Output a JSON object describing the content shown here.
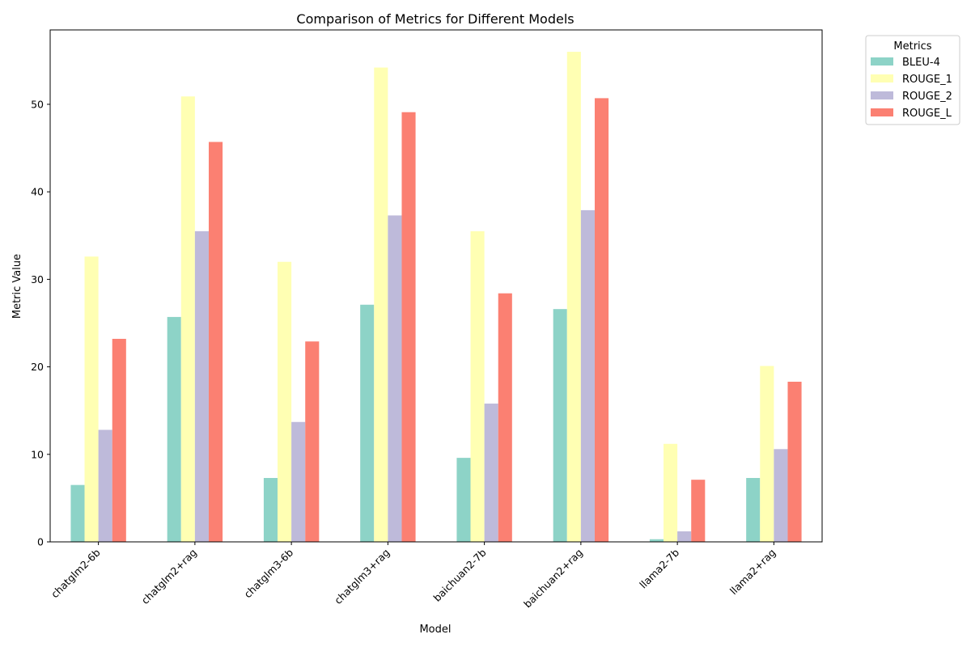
{
  "chart_data": {
    "type": "bar",
    "title": "Comparison of Metrics for Different Models",
    "xlabel": "Model",
    "ylabel": "Metric Value",
    "ylim": [
      0,
      58.5
    ],
    "yticks": [
      0,
      10,
      20,
      30,
      40,
      50
    ],
    "grid": false,
    "legend": {
      "title": "Metrics",
      "placement": "upper-right-outside"
    },
    "categories": [
      "chatglm2-6b",
      "chatglm2+rag",
      "chatglm3-6b",
      "chatglm3+rag",
      "baichuan2-7b",
      "baichuan2+rag",
      "llama2-7b",
      "llama2+rag"
    ],
    "series": [
      {
        "name": "BLEU-4",
        "color": "#8dd3c7",
        "values": [
          6.5,
          25.7,
          7.3,
          27.1,
          9.6,
          26.6,
          0.3,
          7.3
        ]
      },
      {
        "name": "ROUGE_1",
        "color": "#ffffb3",
        "values": [
          32.6,
          50.9,
          32.0,
          54.2,
          35.5,
          56.0,
          11.2,
          20.1
        ]
      },
      {
        "name": "ROUGE_2",
        "color": "#bebada",
        "values": [
          12.8,
          35.5,
          13.7,
          37.3,
          15.8,
          37.9,
          1.2,
          10.6
        ]
      },
      {
        "name": "ROUGE_L",
        "color": "#fb8072",
        "values": [
          23.2,
          45.7,
          22.9,
          49.1,
          28.4,
          50.7,
          7.1,
          18.3
        ]
      }
    ]
  }
}
